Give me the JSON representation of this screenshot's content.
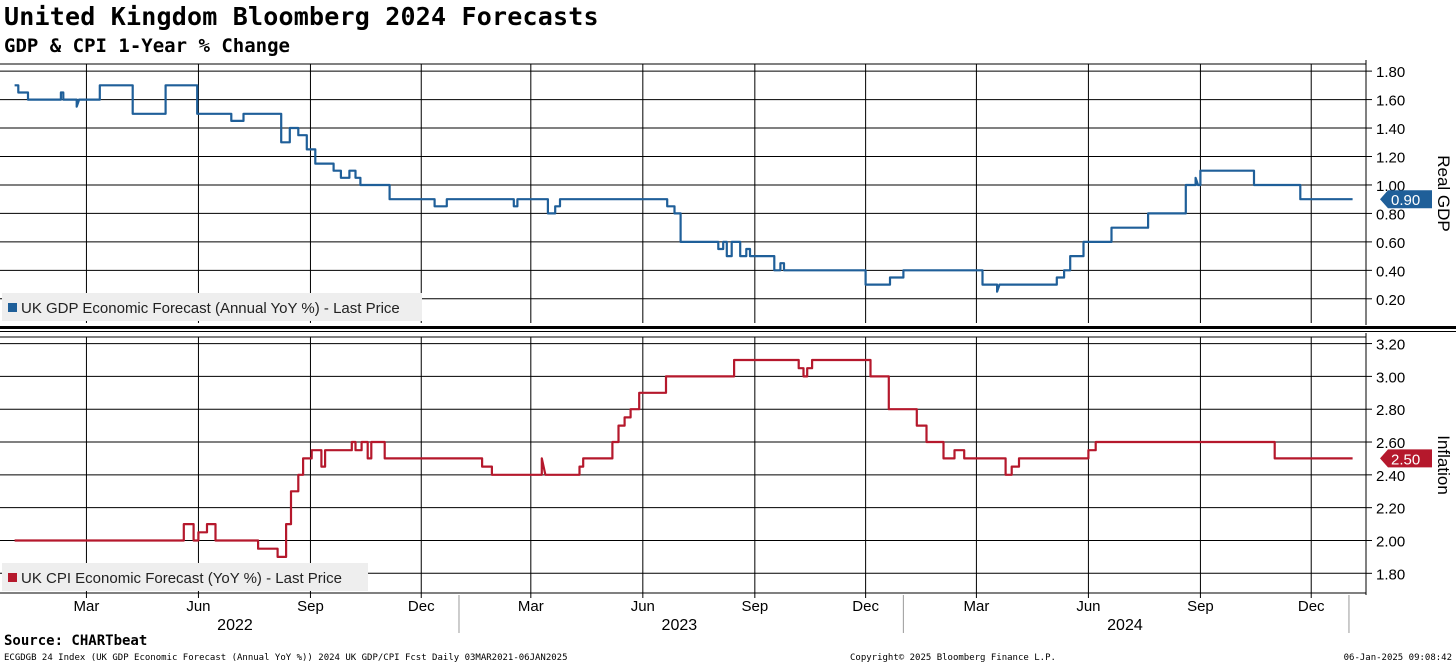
{
  "title": "United Kingdom Bloomberg 2024 Forecasts",
  "subtitle": "GDP & CPI 1-Year % Change",
  "source": "Source: CHARTbeat",
  "footer": {
    "left": "ECGDGB 24 Index (UK GDP Economic Forecast (Annual YoY %)) 2024 UK GDP/CPI Fcst  Daily 03MAR2021-06JAN2025",
    "center": "Copyright© 2025 Bloomberg Finance L.P.",
    "right": "06-Jan-2025 09:08:42"
  },
  "colors": {
    "gdp": "#1f5f99",
    "cpi": "#b5182c",
    "grid": "#000000"
  },
  "chart_data": [
    {
      "type": "line",
      "axis_title": "Real GDP",
      "ylim": [
        0.03,
        1.85
      ],
      "yticks": [
        "1.80",
        "1.60",
        "1.40",
        "1.20",
        "1.00",
        "0.80",
        "0.60",
        "0.40",
        "0.20"
      ],
      "last_value": "0.90",
      "legend": "UK GDP Economic Forecast (Annual YoY %) - Last Price",
      "legend_position": "bottom-left",
      "grid": true,
      "series": [
        {
          "name": "UK GDP Economic Forecast (Annual YoY %) - Last Price",
          "color": "#1f5f99",
          "points": [
            [
              "2022-01-01",
              1.7
            ],
            [
              "2022-01-04",
              1.7
            ],
            [
              "2022-01-04",
              1.65
            ],
            [
              "2022-01-12",
              1.65
            ],
            [
              "2022-01-12",
              1.6
            ],
            [
              "2022-02-08",
              1.6
            ],
            [
              "2022-02-08",
              1.65
            ],
            [
              "2022-02-10",
              1.65
            ],
            [
              "2022-02-10",
              1.6
            ],
            [
              "2022-02-21",
              1.6
            ],
            [
              "2022-02-21",
              1.55
            ],
            [
              "2022-02-23",
              1.6
            ],
            [
              "2022-03-12",
              1.6
            ],
            [
              "2022-03-12",
              1.7
            ],
            [
              "2022-04-08",
              1.7
            ],
            [
              "2022-04-08",
              1.5
            ],
            [
              "2022-05-05",
              1.5
            ],
            [
              "2022-05-05",
              1.7
            ],
            [
              "2022-05-31",
              1.7
            ],
            [
              "2022-05-31",
              1.5
            ],
            [
              "2022-06-28",
              1.5
            ],
            [
              "2022-06-28",
              1.45
            ],
            [
              "2022-07-08",
              1.45
            ],
            [
              "2022-07-08",
              1.5
            ],
            [
              "2022-08-08",
              1.5
            ],
            [
              "2022-08-08",
              1.3
            ],
            [
              "2022-08-15",
              1.3
            ],
            [
              "2022-08-15",
              1.4
            ],
            [
              "2022-08-22",
              1.4
            ],
            [
              "2022-08-22",
              1.35
            ],
            [
              "2022-08-29",
              1.35
            ],
            [
              "2022-08-29",
              1.25
            ],
            [
              "2022-09-05",
              1.25
            ],
            [
              "2022-09-05",
              1.15
            ],
            [
              "2022-09-12",
              1.15
            ],
            [
              "2022-09-12",
              1.15
            ],
            [
              "2022-09-20",
              1.15
            ],
            [
              "2022-09-20",
              1.1
            ],
            [
              "2022-09-26",
              1.1
            ],
            [
              "2022-09-26",
              1.05
            ],
            [
              "2022-10-03",
              1.05
            ],
            [
              "2022-10-03",
              1.1
            ],
            [
              "2022-10-08",
              1.1
            ],
            [
              "2022-10-08",
              1.05
            ],
            [
              "2022-10-12",
              1.05
            ],
            [
              "2022-10-12",
              1.0
            ],
            [
              "2022-11-05",
              1.0
            ],
            [
              "2022-11-05",
              0.9
            ],
            [
              "2022-12-12",
              0.9
            ],
            [
              "2022-12-12",
              0.85
            ],
            [
              "2022-12-22",
              0.85
            ],
            [
              "2022-12-22",
              0.9
            ],
            [
              "2023-02-15",
              0.9
            ],
            [
              "2023-02-15",
              0.85
            ],
            [
              "2023-02-18",
              0.85
            ],
            [
              "2023-02-18",
              0.9
            ],
            [
              "2023-03-15",
              0.9
            ],
            [
              "2023-03-15",
              0.8
            ],
            [
              "2023-03-21",
              0.8
            ],
            [
              "2023-03-21",
              0.85
            ],
            [
              "2023-03-25",
              0.85
            ],
            [
              "2023-03-25",
              0.9
            ],
            [
              "2023-06-21",
              0.9
            ],
            [
              "2023-06-21",
              0.85
            ],
            [
              "2023-06-27",
              0.85
            ],
            [
              "2023-06-27",
              0.8
            ],
            [
              "2023-07-02",
              0.8
            ],
            [
              "2023-07-02",
              0.6
            ],
            [
              "2023-08-02",
              0.6
            ],
            [
              "2023-08-02",
              0.55
            ],
            [
              "2023-08-06",
              0.55
            ],
            [
              "2023-08-06",
              0.6
            ],
            [
              "2023-08-09",
              0.6
            ],
            [
              "2023-08-09",
              0.5
            ],
            [
              "2023-08-13",
              0.5
            ],
            [
              "2023-08-13",
              0.6
            ],
            [
              "2023-08-20",
              0.6
            ],
            [
              "2023-08-20",
              0.5
            ],
            [
              "2023-08-25",
              0.5
            ],
            [
              "2023-08-25",
              0.55
            ],
            [
              "2023-08-28",
              0.55
            ],
            [
              "2023-08-28",
              0.5
            ],
            [
              "2023-09-17",
              0.5
            ],
            [
              "2023-09-17",
              0.4
            ],
            [
              "2023-09-22",
              0.4
            ],
            [
              "2023-09-22",
              0.45
            ],
            [
              "2023-09-25",
              0.45
            ],
            [
              "2023-09-25",
              0.4
            ],
            [
              "2023-12-01",
              0.4
            ],
            [
              "2023-12-01",
              0.3
            ],
            [
              "2023-12-21",
              0.3
            ],
            [
              "2023-12-21",
              0.35
            ],
            [
              "2024-01-01",
              0.35
            ],
            [
              "2024-01-01",
              0.4
            ],
            [
              "2024-03-06",
              0.4
            ],
            [
              "2024-03-06",
              0.3
            ],
            [
              "2024-03-18",
              0.3
            ],
            [
              "2024-03-18",
              0.25
            ],
            [
              "2024-03-20",
              0.3
            ],
            [
              "2024-05-06",
              0.3
            ],
            [
              "2024-05-06",
              0.35
            ],
            [
              "2024-05-12",
              0.35
            ],
            [
              "2024-05-12",
              0.4
            ],
            [
              "2024-05-17",
              0.4
            ],
            [
              "2024-05-17",
              0.5
            ],
            [
              "2024-05-28",
              0.5
            ],
            [
              "2024-05-28",
              0.6
            ],
            [
              "2024-06-20",
              0.6
            ],
            [
              "2024-06-20",
              0.7
            ],
            [
              "2024-07-20",
              0.7
            ],
            [
              "2024-07-20",
              0.8
            ],
            [
              "2024-08-20",
              0.8
            ],
            [
              "2024-08-20",
              1.0
            ],
            [
              "2024-08-28",
              1.0
            ],
            [
              "2024-08-28",
              1.05
            ],
            [
              "2024-08-30",
              1.0
            ],
            [
              "2024-09-01",
              1.0
            ],
            [
              "2024-09-01",
              1.1
            ],
            [
              "2024-10-15",
              1.1
            ],
            [
              "2024-10-15",
              1.0
            ],
            [
              "2024-11-22",
              1.0
            ],
            [
              "2024-11-22",
              0.9
            ],
            [
              "2025-01-04",
              0.9
            ]
          ]
        }
      ]
    },
    {
      "type": "line",
      "axis_title": "Inflation",
      "ylim": [
        1.68,
        3.24
      ],
      "yticks": [
        "3.20",
        "3.00",
        "2.80",
        "2.60",
        "2.40",
        "2.20",
        "2.00",
        "1.80"
      ],
      "last_value": "2.50",
      "legend": "UK CPI Economic Forecast (YoY %) - Last Price",
      "legend_position": "bottom-left",
      "grid": true,
      "series": [
        {
          "name": "UK CPI Economic Forecast (YoY %) - Last Price",
          "color": "#b5182c",
          "points": [
            [
              "2022-01-01",
              2.0
            ],
            [
              "2022-05-20",
              2.0
            ],
            [
              "2022-05-20",
              2.1
            ],
            [
              "2022-05-28",
              2.1
            ],
            [
              "2022-05-28",
              2.0
            ],
            [
              "2022-06-01",
              2.0
            ],
            [
              "2022-06-01",
              2.05
            ],
            [
              "2022-06-08",
              2.05
            ],
            [
              "2022-06-08",
              2.1
            ],
            [
              "2022-06-15",
              2.1
            ],
            [
              "2022-06-15",
              2.0
            ],
            [
              "2022-07-20",
              2.0
            ],
            [
              "2022-07-20",
              1.95
            ],
            [
              "2022-08-05",
              1.95
            ],
            [
              "2022-08-05",
              1.9
            ],
            [
              "2022-08-12",
              1.9
            ],
            [
              "2022-08-12",
              2.1
            ],
            [
              "2022-08-16",
              2.1
            ],
            [
              "2022-08-16",
              2.3
            ],
            [
              "2022-08-22",
              2.3
            ],
            [
              "2022-08-22",
              2.4
            ],
            [
              "2022-08-26",
              2.4
            ],
            [
              "2022-08-26",
              2.5
            ],
            [
              "2022-09-02",
              2.5
            ],
            [
              "2022-09-02",
              2.55
            ],
            [
              "2022-09-10",
              2.55
            ],
            [
              "2022-09-10",
              2.45
            ],
            [
              "2022-09-13",
              2.45
            ],
            [
              "2022-09-13",
              2.55
            ],
            [
              "2022-10-05",
              2.55
            ],
            [
              "2022-10-05",
              2.6
            ],
            [
              "2022-10-08",
              2.6
            ],
            [
              "2022-10-08",
              2.55
            ],
            [
              "2022-10-13",
              2.55
            ],
            [
              "2022-10-13",
              2.6
            ],
            [
              "2022-10-18",
              2.6
            ],
            [
              "2022-10-18",
              2.5
            ],
            [
              "2022-10-21",
              2.5
            ],
            [
              "2022-10-21",
              2.6
            ],
            [
              "2022-11-01",
              2.6
            ],
            [
              "2022-11-01",
              2.5
            ],
            [
              "2023-01-20",
              2.5
            ],
            [
              "2023-01-20",
              2.45
            ],
            [
              "2023-01-28",
              2.45
            ],
            [
              "2023-01-28",
              2.4
            ],
            [
              "2023-03-10",
              2.4
            ],
            [
              "2023-03-10",
              2.5
            ],
            [
              "2023-03-13",
              2.4
            ],
            [
              "2023-04-10",
              2.4
            ],
            [
              "2023-04-10",
              2.45
            ],
            [
              "2023-04-13",
              2.45
            ],
            [
              "2023-04-13",
              2.5
            ],
            [
              "2023-05-07",
              2.5
            ],
            [
              "2023-05-07",
              2.6
            ],
            [
              "2023-05-12",
              2.6
            ],
            [
              "2023-05-12",
              2.7
            ],
            [
              "2023-05-17",
              2.7
            ],
            [
              "2023-05-17",
              2.75
            ],
            [
              "2023-05-22",
              2.75
            ],
            [
              "2023-05-22",
              2.8
            ],
            [
              "2023-05-29",
              2.8
            ],
            [
              "2023-05-29",
              2.9
            ],
            [
              "2023-06-20",
              2.9
            ],
            [
              "2023-06-20",
              3.0
            ],
            [
              "2023-08-15",
              3.0
            ],
            [
              "2023-08-15",
              3.1
            ],
            [
              "2023-10-07",
              3.1
            ],
            [
              "2023-10-07",
              3.05
            ],
            [
              "2023-10-11",
              3.05
            ],
            [
              "2023-10-11",
              3.0
            ],
            [
              "2023-10-14",
              3.0
            ],
            [
              "2023-10-14",
              3.05
            ],
            [
              "2023-10-18",
              3.05
            ],
            [
              "2023-10-18",
              3.1
            ],
            [
              "2023-12-05",
              3.1
            ],
            [
              "2023-12-05",
              3.0
            ],
            [
              "2023-12-20",
              3.0
            ],
            [
              "2023-12-20",
              2.8
            ],
            [
              "2024-01-12",
              2.8
            ],
            [
              "2024-01-12",
              2.7
            ],
            [
              "2024-01-20",
              2.7
            ],
            [
              "2024-01-20",
              2.6
            ],
            [
              "2024-02-03",
              2.6
            ],
            [
              "2024-02-03",
              2.5
            ],
            [
              "2024-02-12",
              2.5
            ],
            [
              "2024-02-12",
              2.55
            ],
            [
              "2024-02-20",
              2.55
            ],
            [
              "2024-02-20",
              2.5
            ],
            [
              "2024-03-25",
              2.5
            ],
            [
              "2024-03-25",
              2.4
            ],
            [
              "2024-03-30",
              2.4
            ],
            [
              "2024-03-30",
              2.45
            ],
            [
              "2024-04-05",
              2.45
            ],
            [
              "2024-04-05",
              2.5
            ],
            [
              "2024-06-01",
              2.5
            ],
            [
              "2024-06-01",
              2.55
            ],
            [
              "2024-06-07",
              2.55
            ],
            [
              "2024-06-07",
              2.6
            ],
            [
              "2024-11-01",
              2.6
            ],
            [
              "2024-11-01",
              2.5
            ],
            [
              "2025-01-04",
              2.5
            ]
          ]
        }
      ]
    }
  ],
  "x_axis": {
    "months": [
      {
        "label": "Mar",
        "date": "2022-03-01"
      },
      {
        "label": "Jun",
        "date": "2022-06-01"
      },
      {
        "label": "Sep",
        "date": "2022-09-01"
      },
      {
        "label": "Dec",
        "date": "2022-12-01"
      },
      {
        "label": "Mar",
        "date": "2023-03-01"
      },
      {
        "label": "Jun",
        "date": "2023-06-01"
      },
      {
        "label": "Sep",
        "date": "2023-09-01"
      },
      {
        "label": "Dec",
        "date": "2023-12-01"
      },
      {
        "label": "Mar",
        "date": "2024-03-01"
      },
      {
        "label": "Jun",
        "date": "2024-06-01"
      },
      {
        "label": "Sep",
        "date": "2024-09-01"
      },
      {
        "label": "Dec",
        "date": "2024-12-01"
      }
    ],
    "years": [
      {
        "label": "2022",
        "date": "2022-07-01"
      },
      {
        "label": "2023",
        "date": "2023-07-01"
      },
      {
        "label": "2024",
        "date": "2024-07-01"
      }
    ],
    "year_boundaries": [
      "2023-01-01",
      "2024-01-01",
      "2025-01-01"
    ]
  }
}
